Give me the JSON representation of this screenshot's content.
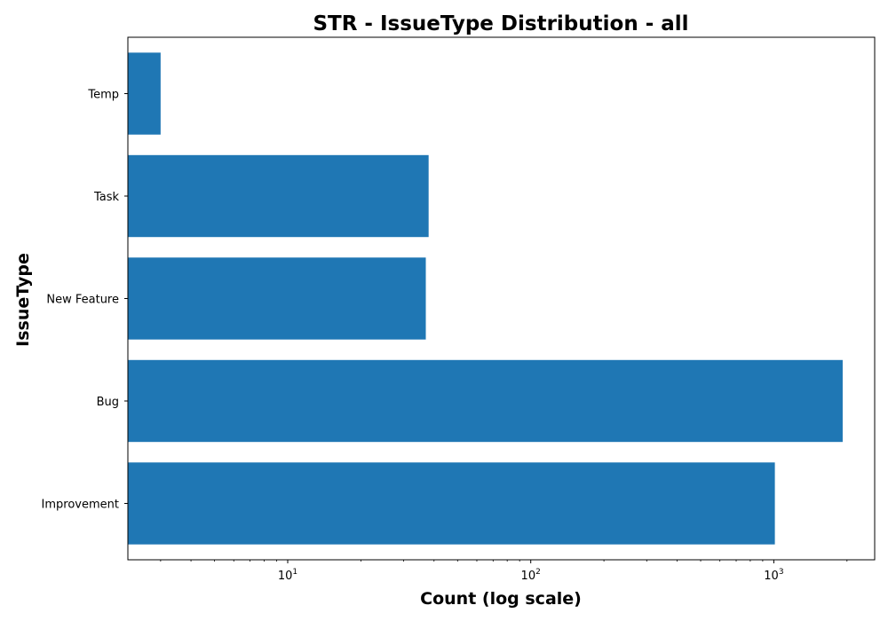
{
  "chart_data": {
    "type": "bar",
    "orientation": "horizontal",
    "title": "STR - IssueType Distribution - all",
    "xlabel": "Count (log scale)",
    "ylabel": "IssueType",
    "x_scale": "log",
    "xlim": [
      2.2,
      2600
    ],
    "x_ticks": [
      {
        "base": "10",
        "exp": "1",
        "value": 10
      },
      {
        "base": "10",
        "exp": "2",
        "value": 100
      },
      {
        "base": "10",
        "exp": "3",
        "value": 1000
      }
    ],
    "categories": [
      "Improvement",
      "Bug",
      "New Feature",
      "Task",
      "Temp"
    ],
    "values": [
      1010,
      1920,
      37,
      38,
      3
    ],
    "bar_color": "#1f77b4",
    "grid": false,
    "legend": "none"
  }
}
